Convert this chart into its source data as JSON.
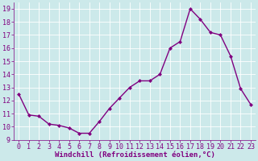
{
  "x": [
    0,
    1,
    2,
    3,
    4,
    5,
    6,
    7,
    8,
    9,
    10,
    11,
    12,
    13,
    14,
    15,
    16,
    17,
    18,
    19,
    20,
    21,
    22,
    23
  ],
  "y": [
    12.5,
    10.9,
    10.8,
    10.2,
    10.1,
    9.9,
    9.5,
    9.5,
    10.4,
    11.4,
    12.2,
    13.0,
    13.5,
    13.5,
    14.0,
    16.0,
    16.5,
    19.0,
    18.2,
    17.2,
    17.0,
    15.4,
    12.9,
    11.7
  ],
  "line_color": "#800080",
  "marker": "D",
  "marker_size": 2,
  "bg_color": "#cce9ea",
  "grid_color": "#b0d8da",
  "xlabel": "Windchill (Refroidissement éolien,°C)",
  "xlim": [
    -0.5,
    23.5
  ],
  "ylim": [
    9,
    19.5
  ],
  "yticks": [
    9,
    10,
    11,
    12,
    13,
    14,
    15,
    16,
    17,
    18,
    19
  ],
  "xticks": [
    0,
    1,
    2,
    3,
    4,
    5,
    6,
    7,
    8,
    9,
    10,
    11,
    12,
    13,
    14,
    15,
    16,
    17,
    18,
    19,
    20,
    21,
    22,
    23
  ],
  "label_color": "#800080",
  "font_size_xlabel": 6.5,
  "font_size_ticks": 6.0,
  "linewidth": 1.0
}
